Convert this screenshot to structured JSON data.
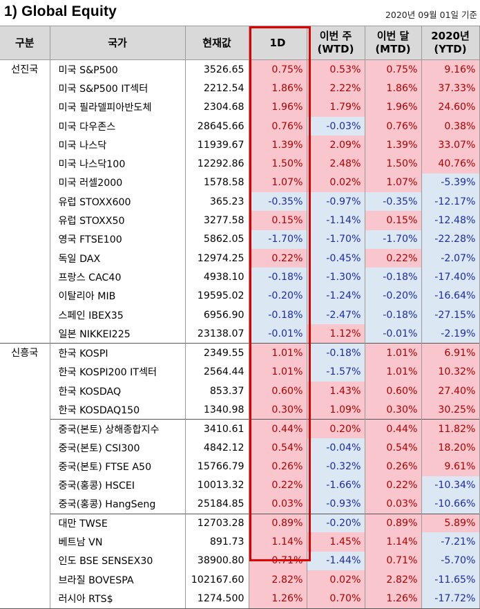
{
  "title": "1) Global Equity",
  "date": "2020년 09월 01일 기준",
  "headers": {
    "group": "구분",
    "country": "국가",
    "price": "현재값",
    "d1": "1D",
    "wtd_line1": "이번 주",
    "wtd_line2": "(WTD)",
    "mtd_line1": "이번 달",
    "mtd_line2": "(MTD)",
    "ytd_line1": "2020년",
    "ytd_line2": "(YTD)"
  },
  "groups": [
    "선진국",
    "신흥국"
  ],
  "rows": [
    {
      "group": "선진국",
      "name": "미국 S&P500",
      "price": "3526.65",
      "d1": "0.75%",
      "wtd": "0.53%",
      "mtd": "0.75%",
      "ytd": "9.16%"
    },
    {
      "group": "",
      "name": "미국 S&P500 IT섹터",
      "price": "2212.54",
      "d1": "1.86%",
      "wtd": "2.22%",
      "mtd": "1.86%",
      "ytd": "37.33%"
    },
    {
      "group": "",
      "name": "미국 필라델피아반도체",
      "price": "2304.68",
      "d1": "1.96%",
      "wtd": "1.79%",
      "mtd": "1.96%",
      "ytd": "24.60%"
    },
    {
      "group": "",
      "name": "미국 다우존스",
      "price": "28645.66",
      "d1": "0.76%",
      "wtd": "-0.03%",
      "mtd": "0.76%",
      "ytd": "0.38%"
    },
    {
      "group": "",
      "name": "미국 나스닥",
      "price": "11939.67",
      "d1": "1.39%",
      "wtd": "2.09%",
      "mtd": "1.39%",
      "ytd": "33.07%"
    },
    {
      "group": "",
      "name": "미국 나스닥100",
      "price": "12292.86",
      "d1": "1.50%",
      "wtd": "2.48%",
      "mtd": "1.50%",
      "ytd": "40.76%"
    },
    {
      "group": "",
      "name": "미국 러셀2000",
      "price": "1578.58",
      "d1": "1.07%",
      "wtd": "0.02%",
      "mtd": "1.07%",
      "ytd": "-5.39%"
    },
    {
      "group": "",
      "name": "유럽 STOXX600",
      "price": "365.23",
      "d1": "-0.35%",
      "wtd": "-0.97%",
      "mtd": "-0.35%",
      "ytd": "-12.17%"
    },
    {
      "group": "",
      "name": "유럽 STOXX50",
      "price": "3277.58",
      "d1": "0.15%",
      "wtd": "-1.14%",
      "mtd": "0.15%",
      "ytd": "-12.48%"
    },
    {
      "group": "",
      "name": "영국 FTSE100",
      "price": "5862.05",
      "d1": "-1.70%",
      "wtd": "-1.70%",
      "mtd": "-1.70%",
      "ytd": "-22.28%"
    },
    {
      "group": "",
      "name": "독일 DAX",
      "price": "12974.25",
      "d1": "0.22%",
      "wtd": "-0.45%",
      "mtd": "0.22%",
      "ytd": "-2.07%"
    },
    {
      "group": "",
      "name": "프랑스 CAC40",
      "price": "4938.10",
      "d1": "-0.18%",
      "wtd": "-1.30%",
      "mtd": "-0.18%",
      "ytd": "-17.40%"
    },
    {
      "group": "",
      "name": "이탈리아 MIB",
      "price": "19595.02",
      "d1": "-0.20%",
      "wtd": "-1.24%",
      "mtd": "-0.20%",
      "ytd": "-16.64%"
    },
    {
      "group": "",
      "name": "스페인 IBEX35",
      "price": "6956.90",
      "d1": "-0.18%",
      "wtd": "-2.47%",
      "mtd": "-0.18%",
      "ytd": "-27.15%"
    },
    {
      "group": "",
      "name": "일본 NIKKEI225",
      "price": "23138.07",
      "d1": "-0.01%",
      "wtd": "1.12%",
      "mtd": "-0.01%",
      "ytd": "-2.19%"
    },
    {
      "group": "신흥국",
      "name": "한국 KOSPI",
      "price": "2349.55",
      "d1": "1.01%",
      "wtd": "-0.18%",
      "mtd": "1.01%",
      "ytd": "6.91%"
    },
    {
      "group": "",
      "name": "한국 KOSPI200 IT섹터",
      "price": "2564.44",
      "d1": "1.01%",
      "wtd": "-1.57%",
      "mtd": "1.01%",
      "ytd": "10.32%"
    },
    {
      "group": "",
      "name": "한국 KOSDAQ",
      "price": "853.37",
      "d1": "0.60%",
      "wtd": "1.43%",
      "mtd": "0.60%",
      "ytd": "27.40%"
    },
    {
      "group": "",
      "name": "한국 KOSDAQ150",
      "price": "1340.98",
      "d1": "0.30%",
      "wtd": "1.09%",
      "mtd": "0.30%",
      "ytd": "30.25%"
    },
    {
      "group": "",
      "name": "중국(본토) 상해종합지수",
      "price": "3410.61",
      "d1": "0.44%",
      "wtd": "0.20%",
      "mtd": "0.44%",
      "ytd": "11.82%",
      "sep": true
    },
    {
      "group": "",
      "name": "중국(본토) CSI300",
      "price": "4842.12",
      "d1": "0.54%",
      "wtd": "-0.04%",
      "mtd": "0.54%",
      "ytd": "18.20%"
    },
    {
      "group": "",
      "name": "중국(본토) FTSE A50",
      "price": "15766.79",
      "d1": "0.26%",
      "wtd": "-0.32%",
      "mtd": "0.26%",
      "ytd": "9.61%"
    },
    {
      "group": "",
      "name": "중국(홍콩) HSCEI",
      "price": "10013.32",
      "d1": "0.22%",
      "wtd": "-1.66%",
      "mtd": "0.22%",
      "ytd": "-10.34%"
    },
    {
      "group": "",
      "name": "중국(홍콩) HangSeng",
      "price": "25184.85",
      "d1": "0.03%",
      "wtd": "-0.93%",
      "mtd": "0.03%",
      "ytd": "-10.66%"
    },
    {
      "group": "",
      "name": "대만 TWSE",
      "price": "12703.28",
      "d1": "0.89%",
      "wtd": "-0.20%",
      "mtd": "0.89%",
      "ytd": "5.89%",
      "sep": true
    },
    {
      "group": "",
      "name": "베트남 VN",
      "price": "891.73",
      "d1": "1.14%",
      "wtd": "1.45%",
      "mtd": "1.14%",
      "ytd": "-7.21%"
    },
    {
      "group": "",
      "name": "인도 BSE SENSEX30",
      "price": "38900.80",
      "d1": "0.71%",
      "wtd": "-1.44%",
      "mtd": "0.71%",
      "ytd": "-5.70%"
    },
    {
      "group": "",
      "name": "브라질 BOVESPA",
      "price": "102167.60",
      "d1": "2.82%",
      "wtd": "0.02%",
      "mtd": "2.82%",
      "ytd": "-11.65%"
    },
    {
      "group": "",
      "name": "러시아 RTS$",
      "price": "1274.500",
      "d1": "1.26%",
      "wtd": "0.70%",
      "mtd": "1.26%",
      "ytd": "-17.72%"
    }
  ],
  "colors": {
    "positive_bg": "#f9c6cd",
    "negative_bg": "#dbe8f4",
    "highlight_border": "#e00000",
    "header_bg": "#d9d9d9"
  }
}
